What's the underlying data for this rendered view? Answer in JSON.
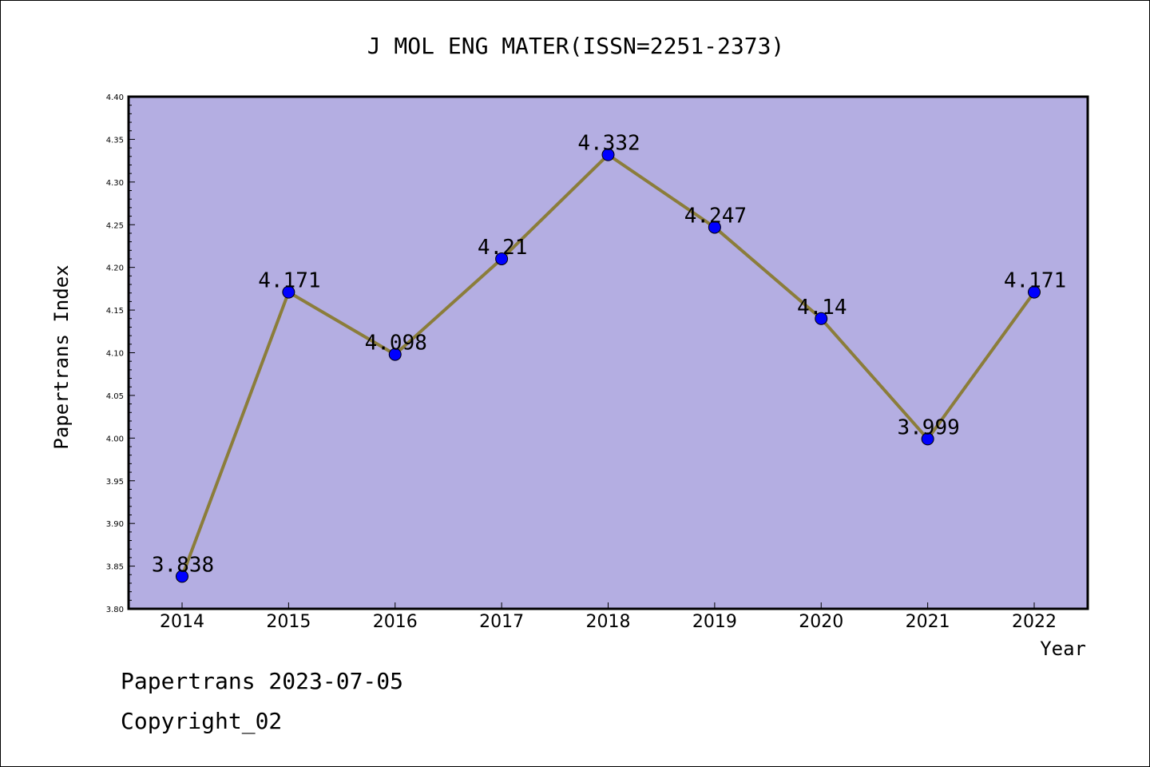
{
  "chart_data": {
    "type": "line",
    "title": "J MOL ENG MATER(ISSN=2251-2373)",
    "xlabel": "Year",
    "ylabel": "Papertrans Index",
    "x": [
      "2014",
      "2015",
      "2016",
      "2017",
      "2018",
      "2019",
      "2020",
      "2021",
      "2022"
    ],
    "series": [
      {
        "values": [
          3.838,
          4.171,
          4.098,
          4.21,
          4.332,
          4.247,
          4.14,
          3.999,
          4.171
        ],
        "data_labels": [
          "3.838",
          "4.171",
          "4.098",
          "4.21",
          "4.332",
          "4.247",
          "4.14",
          "3.999",
          "4.171"
        ]
      }
    ],
    "ylim": [
      3.8,
      4.4
    ],
    "yticks": [
      "3.80",
      "3.85",
      "3.90",
      "3.95",
      "4.00",
      "4.05",
      "4.10",
      "4.15",
      "4.20",
      "4.25",
      "4.30",
      "4.35",
      "4.40"
    ],
    "grid": false,
    "legend": "none",
    "colors": {
      "plot_background": "#b4aee2",
      "line": "#8b7d3a",
      "marker": "#0000ff",
      "axes": "#000000"
    }
  },
  "footer": {
    "line1": "Papertrans 2023-07-05",
    "line2": "Copyright_02"
  }
}
